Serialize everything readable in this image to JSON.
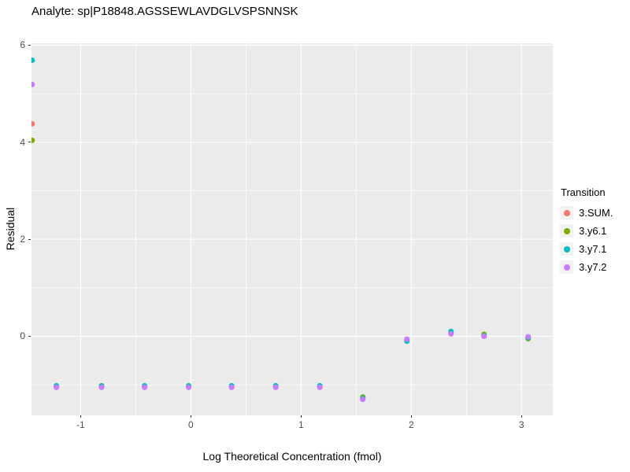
{
  "chart_data": {
    "type": "scatter",
    "title": "Analyte: sp|P18848.AGSSEWLAVDGLVSPSNNSK",
    "xlabel": "Log Theoretical Concentration (fmol)",
    "ylabel": "Residual",
    "legend_title": "Transition",
    "legend_position": "right",
    "grid": true,
    "panel_bg": "#EBEBEB",
    "grid_color": "#FFFFFF",
    "tick_label_color": "#4D4D4D",
    "xlim": [
      -1.446,
      3.284
    ],
    "ylim": [
      -1.63,
      6.04
    ],
    "xticks": [
      "-1",
      "0",
      "1",
      "2",
      "3"
    ],
    "xtick_values": [
      -1,
      0,
      1,
      2,
      3
    ],
    "yticks": [
      "0",
      "2",
      "4",
      "6"
    ],
    "ytick_values": [
      0,
      2,
      4,
      6
    ],
    "x_minor": [
      -0.5,
      0.5,
      1.5,
      2.5
    ],
    "y_minor": [
      -1,
      1,
      3,
      5
    ],
    "point_radius": 3.5,
    "x": [
      -1.44,
      -1.22,
      -0.81,
      -0.42,
      -0.02,
      0.37,
      0.77,
      1.17,
      1.56,
      1.96,
      2.36,
      2.66,
      3.06
    ],
    "series": [
      {
        "name": "3.SUM.",
        "color": "#F8766D",
        "values": [
          4.38,
          -1.05,
          -1.05,
          -1.05,
          -1.05,
          -1.05,
          -1.05,
          -1.05,
          -1.29,
          -0.07,
          0.06,
          0.01,
          -0.02
        ]
      },
      {
        "name": "3.y6.1",
        "color": "#7CAE00",
        "values": [
          4.04,
          -1.04,
          -1.04,
          -1.04,
          -1.04,
          -1.04,
          -1.04,
          -1.04,
          -1.25,
          -0.07,
          0.06,
          0.04,
          -0.05
        ]
      },
      {
        "name": "3.y7.1",
        "color": "#00BFC4",
        "values": [
          5.69,
          -1.02,
          -1.02,
          -1.02,
          -1.02,
          -1.02,
          -1.02,
          -1.02,
          -1.28,
          -0.1,
          0.1,
          0.01,
          -0.03
        ]
      },
      {
        "name": "3.y7.2",
        "color": "#C77CFF",
        "values": [
          5.19,
          -1.05,
          -1.05,
          -1.05,
          -1.05,
          -1.05,
          -1.05,
          -1.05,
          -1.3,
          -0.06,
          0.05,
          0.0,
          -0.01
        ]
      }
    ]
  }
}
